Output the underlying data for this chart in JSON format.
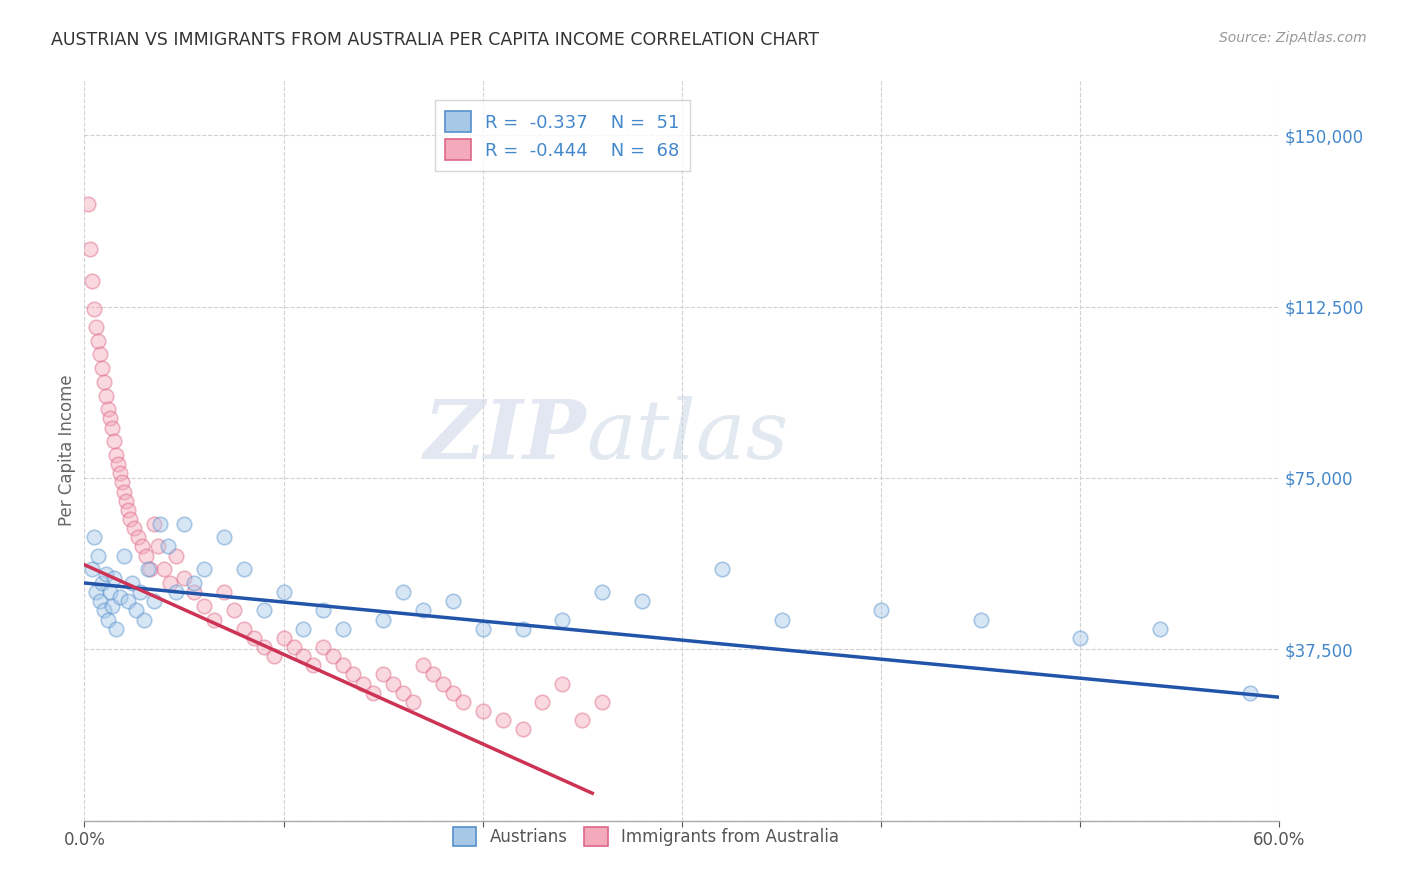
{
  "title": "AUSTRIAN VS IMMIGRANTS FROM AUSTRALIA PER CAPITA INCOME CORRELATION CHART",
  "source": "Source: ZipAtlas.com",
  "ylabel": "Per Capita Income",
  "xlim": [
    0.0,
    0.6
  ],
  "ylim": [
    0,
    162000
  ],
  "yticks": [
    0,
    37500,
    75000,
    112500,
    150000
  ],
  "ytick_labels": [
    "",
    "$37,500",
    "$75,000",
    "$112,500",
    "$150,000"
  ],
  "xticks": [
    0.0,
    0.1,
    0.2,
    0.3,
    0.4,
    0.5,
    0.6
  ],
  "xtick_labels": [
    "0.0%",
    "",
    "",
    "",
    "",
    "",
    "60.0%"
  ],
  "background_color": "#ffffff",
  "legend_r1": "-0.337",
  "legend_n1": "51",
  "legend_r2": "-0.444",
  "legend_n2": "68",
  "blue_color": "#A8C8E8",
  "pink_color": "#F4AABB",
  "blue_edge_color": "#5590CC",
  "pink_edge_color": "#DD6688",
  "blue_line_color": "#2255AA",
  "pink_line_color": "#CC3355",
  "title_color": "#333333",
  "right_label_color": "#4488CC",
  "blue_scatter_x": [
    0.004,
    0.005,
    0.006,
    0.007,
    0.008,
    0.009,
    0.01,
    0.011,
    0.012,
    0.013,
    0.014,
    0.015,
    0.016,
    0.018,
    0.02,
    0.022,
    0.024,
    0.026,
    0.028,
    0.03,
    0.032,
    0.035,
    0.038,
    0.042,
    0.046,
    0.05,
    0.055,
    0.06,
    0.07,
    0.08,
    0.09,
    0.1,
    0.11,
    0.12,
    0.13,
    0.15,
    0.16,
    0.17,
    0.185,
    0.2,
    0.22,
    0.24,
    0.26,
    0.28,
    0.32,
    0.35,
    0.4,
    0.45,
    0.5,
    0.54,
    0.585
  ],
  "blue_scatter_y": [
    55000,
    62000,
    50000,
    58000,
    48000,
    52000,
    46000,
    54000,
    44000,
    50000,
    47000,
    53000,
    42000,
    49000,
    58000,
    48000,
    52000,
    46000,
    50000,
    44000,
    55000,
    48000,
    65000,
    60000,
    50000,
    65000,
    52000,
    55000,
    62000,
    55000,
    46000,
    50000,
    42000,
    46000,
    42000,
    44000,
    50000,
    46000,
    48000,
    42000,
    42000,
    44000,
    50000,
    48000,
    55000,
    44000,
    46000,
    44000,
    40000,
    42000,
    28000
  ],
  "pink_scatter_x": [
    0.002,
    0.003,
    0.004,
    0.005,
    0.006,
    0.007,
    0.008,
    0.009,
    0.01,
    0.011,
    0.012,
    0.013,
    0.014,
    0.015,
    0.016,
    0.017,
    0.018,
    0.019,
    0.02,
    0.021,
    0.022,
    0.023,
    0.025,
    0.027,
    0.029,
    0.031,
    0.033,
    0.035,
    0.037,
    0.04,
    0.043,
    0.046,
    0.05,
    0.055,
    0.06,
    0.065,
    0.07,
    0.075,
    0.08,
    0.085,
    0.09,
    0.095,
    0.1,
    0.105,
    0.11,
    0.115,
    0.12,
    0.125,
    0.13,
    0.135,
    0.14,
    0.145,
    0.15,
    0.155,
    0.16,
    0.165,
    0.17,
    0.175,
    0.18,
    0.185,
    0.19,
    0.2,
    0.21,
    0.22,
    0.23,
    0.24,
    0.25,
    0.26
  ],
  "pink_scatter_y": [
    135000,
    125000,
    118000,
    112000,
    108000,
    105000,
    102000,
    99000,
    96000,
    93000,
    90000,
    88000,
    86000,
    83000,
    80000,
    78000,
    76000,
    74000,
    72000,
    70000,
    68000,
    66000,
    64000,
    62000,
    60000,
    58000,
    55000,
    65000,
    60000,
    55000,
    52000,
    58000,
    53000,
    50000,
    47000,
    44000,
    50000,
    46000,
    42000,
    40000,
    38000,
    36000,
    40000,
    38000,
    36000,
    34000,
    38000,
    36000,
    34000,
    32000,
    30000,
    28000,
    32000,
    30000,
    28000,
    26000,
    34000,
    32000,
    30000,
    28000,
    26000,
    24000,
    22000,
    20000,
    26000,
    30000,
    22000,
    26000
  ],
  "blue_line_x": [
    0.0,
    0.6
  ],
  "blue_line_y": [
    52000,
    27000
  ],
  "pink_line_x": [
    0.0,
    0.255
  ],
  "pink_line_y": [
    56000,
    6000
  ],
  "marker_size": 110,
  "marker_alpha": 0.45,
  "marker_linewidth": 1.2
}
